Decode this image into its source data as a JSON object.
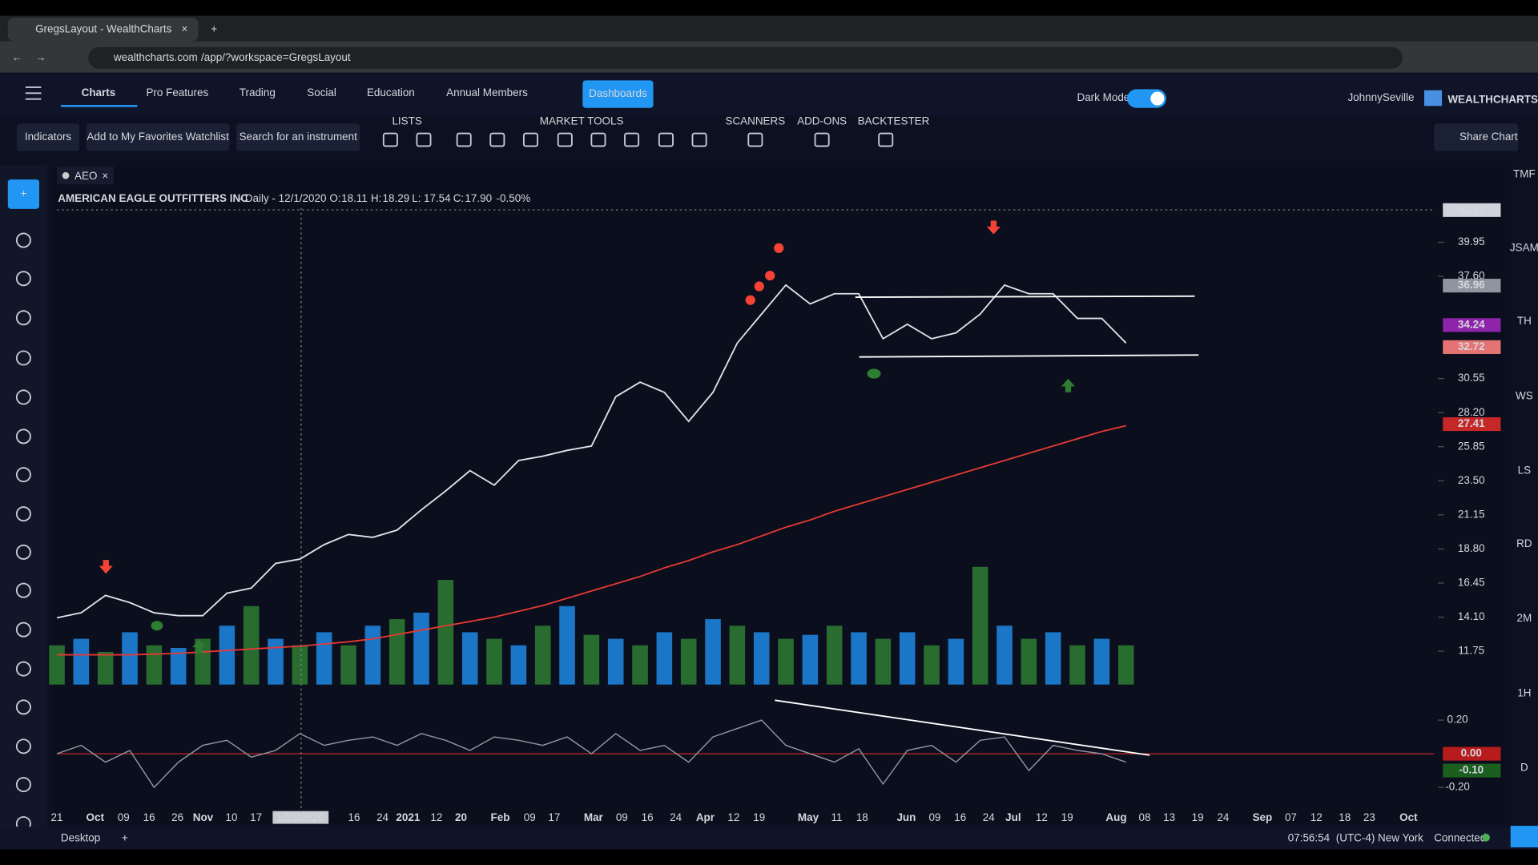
{
  "browser": {
    "tab_title": "GregsLayout - WealthCharts",
    "url_host": "wealthcharts.com",
    "url_path": "/app/?workspace=GregsLayout"
  },
  "nav": {
    "items": [
      "Charts",
      "Pro Features",
      "Trading",
      "Social",
      "Education",
      "Annual Members"
    ],
    "dashboards": "Dashboards",
    "dark_mode": "Dark Mode",
    "user": "JohnnySeville",
    "brand": "WEALTHCHARTS"
  },
  "toolbar": {
    "buttons": [
      "Indicators",
      "Add to My Favorites Watchlist",
      "Search for an instrument"
    ],
    "groups": [
      "LISTS",
      "MARKET TOOLS",
      "SCANNERS",
      "ADD-ONS",
      "BACKTESTER"
    ],
    "share": "Share Chart"
  },
  "chart_tab": "AEO",
  "right_rail": [
    "TMF",
    "JSAM",
    "TH",
    "WS",
    "LS",
    "RD",
    "2M",
    "1H",
    "D"
  ],
  "status": {
    "workspace": "Desktop",
    "time": "07:56:54",
    "timezone": "(UTC-4) New York",
    "connection": "Connected"
  },
  "chart_data": {
    "type": "line",
    "title": "AMERICAN EAGLE OUTFITTERS INC",
    "subtitle": "- Daily - 12/1/2020",
    "ohlc_labels": [
      "O:",
      "H:",
      "L:",
      "C:"
    ],
    "ohlc_values": [
      "18.11",
      "18.29",
      "17.54",
      "17.90"
    ],
    "change": "-0.50%",
    "x_labels": [
      "21",
      "Oct",
      "09",
      "16",
      "26",
      "Nov",
      "10",
      "17",
      "12/1/2020",
      "16",
      "24",
      "2021",
      "12",
      "20",
      "Feb",
      "09",
      "17",
      "Mar",
      "09",
      "16",
      "24",
      "Apr",
      "12",
      "19",
      "May",
      "11",
      "18",
      "Jun",
      "09",
      "16",
      "24",
      "Jul",
      "12",
      "19",
      "Aug",
      "08",
      "13",
      "19",
      "24",
      "Sep",
      "07",
      "12",
      "18",
      "23",
      "Oct"
    ],
    "series": [
      {
        "color": "#dfe3ea",
        "values": [
          14.05,
          14.4,
          15.6,
          15.1,
          14.4,
          14.2,
          14.2,
          15.75,
          16.1,
          17.8,
          18.1,
          19.1,
          19.8,
          19.6,
          20.1,
          21.5,
          22.8,
          24.2,
          23.2,
          24.9,
          25.2,
          25.6,
          25.9,
          29.3,
          30.3,
          29.6,
          27.6,
          29.6,
          33.0,
          35.0,
          37.0,
          35.7,
          36.4,
          36.4,
          33.3,
          34.3,
          33.3,
          33.7,
          35.0,
          37.0,
          36.4,
          36.4,
          34.7,
          34.7,
          33.0
        ]
      },
      {
        "color": "#e53935",
        "values": [
          11.5,
          11.5,
          11.5,
          11.5,
          11.55,
          11.6,
          11.7,
          11.8,
          11.9,
          12.0,
          12.1,
          12.25,
          12.4,
          12.6,
          12.9,
          13.2,
          13.5,
          13.8,
          14.1,
          14.5,
          14.9,
          15.4,
          15.9,
          16.4,
          16.9,
          17.5,
          18.0,
          18.6,
          19.1,
          19.7,
          20.3,
          20.8,
          21.4,
          21.9,
          22.4,
          22.9,
          23.4,
          23.9,
          24.4,
          24.9,
          25.4,
          25.9,
          26.4,
          26.9,
          27.3
        ]
      }
    ],
    "volume": {
      "colors": [
        "#2e7d32",
        "#1e88e5"
      ],
      "values": [
        30,
        35,
        25,
        40,
        30,
        28,
        35,
        45,
        60,
        35,
        30,
        40,
        30,
        45,
        50,
        55,
        80,
        40,
        35,
        30,
        45,
        60,
        38,
        35,
        30,
        40,
        35,
        50,
        45,
        40,
        35,
        38,
        45,
        40,
        35,
        40,
        30,
        35,
        90,
        45,
        35,
        40,
        30,
        35,
        30
      ]
    },
    "ylim": [
      9.45,
      42.59
    ],
    "yticks": [
      39.95,
      {
        "value": 37.6,
        "label": "37.60"
      },
      30.55,
      {
        "value": 28.2,
        "label": "28.20"
      },
      25.85,
      {
        "value": 23.5,
        "label": "23.50"
      },
      21.15,
      {
        "value": 18.8,
        "label": "18.80"
      },
      16.45,
      {
        "value": 14.1,
        "label": "14.10"
      },
      11.75
    ],
    "price_badges": [
      {
        "value": 42.17,
        "color": "#d0d3db"
      },
      {
        "value": 36.96,
        "color": "#8f959f"
      },
      {
        "value": 34.24,
        "color": "#8e24aa"
      },
      {
        "value": 32.72,
        "color": "#e57373"
      },
      {
        "value": 27.41,
        "color": "#c62828"
      }
    ],
    "oscillator": {
      "color": "#8d93a0",
      "zero_color": "#c62828",
      "values": [
        0.0,
        0.05,
        -0.05,
        0.02,
        -0.2,
        -0.05,
        0.05,
        0.08,
        -0.02,
        0.02,
        0.12,
        0.05,
        0.08,
        0.1,
        0.05,
        0.12,
        0.08,
        0.02,
        0.1,
        0.08,
        0.05,
        0.1,
        0.0,
        0.12,
        0.02,
        0.05,
        -0.05,
        0.1,
        0.15,
        0.2,
        0.05,
        0.0,
        -0.05,
        0.03,
        -0.18,
        0.02,
        0.05,
        -0.05,
        0.08,
        0.1,
        -0.1,
        0.05,
        0.02,
        0.0,
        -0.05
      ],
      "ylim": [
        -0.3,
        0.33
      ],
      "yticks": [
        {
          "value": 0.2,
          "label": "0.20"
        },
        {
          "value": -0.2,
          "label": "-0.20"
        }
      ],
      "badges": [
        {
          "value": 0,
          "label": "0.00",
          "color": "#b71c1c"
        },
        {
          "value": -0.1,
          "label": "-0.10",
          "color": "#1b5e20"
        }
      ]
    }
  }
}
